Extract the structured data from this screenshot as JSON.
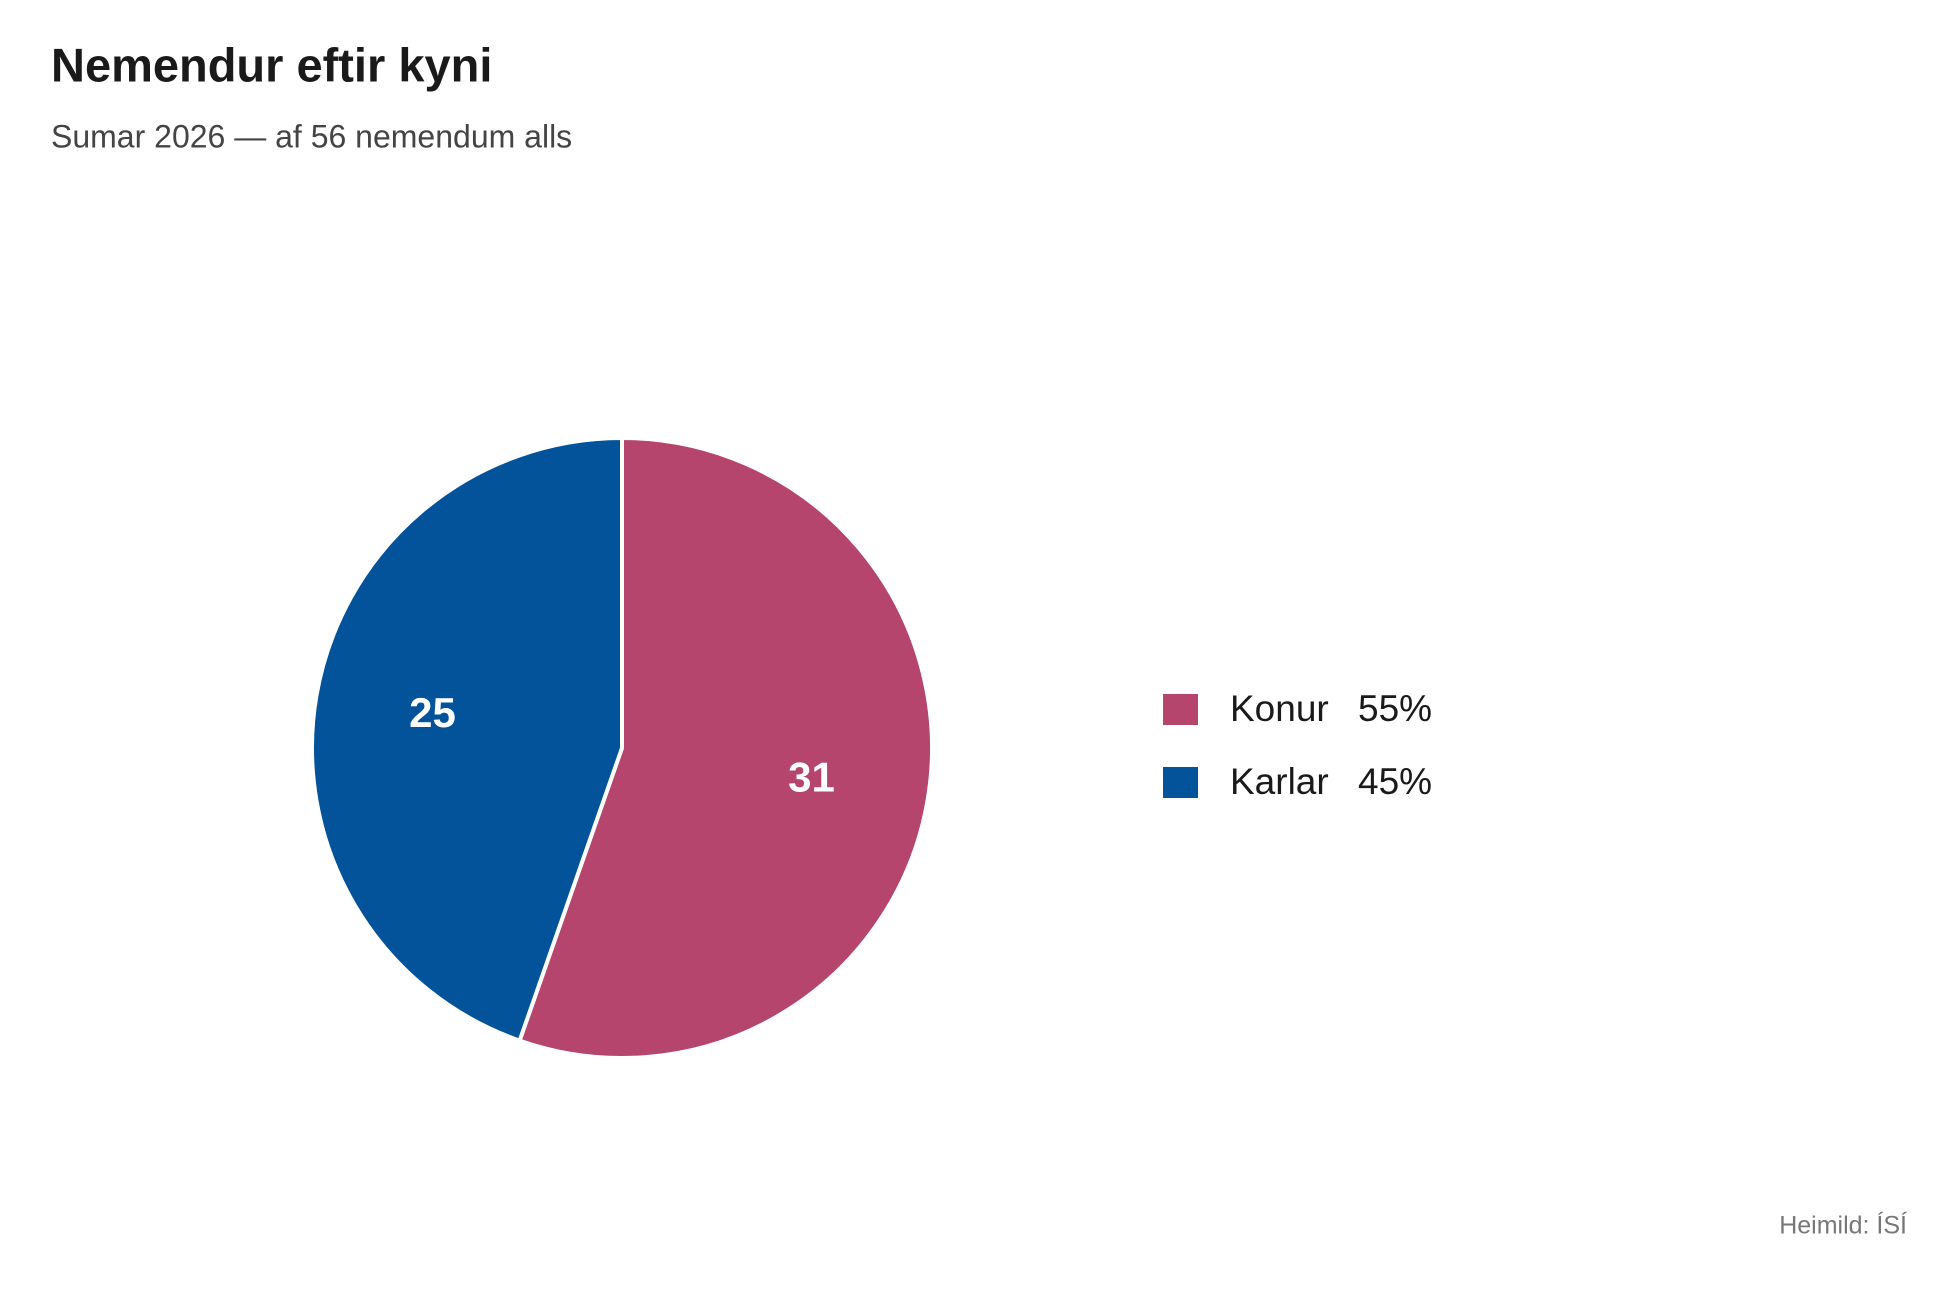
{
  "chart_data": {
    "type": "pie",
    "title": "Nemendur eftir kyni",
    "subtitle": "Sumar 2026 — af 56 nemendum alls",
    "categories": [
      "Konur",
      "Karlar"
    ],
    "values": [
      31,
      25
    ],
    "shares": [
      "55%",
      "45%"
    ],
    "colors": [
      "#b5456c",
      "#03539b"
    ],
    "source": "Heimild: ÍSÍ"
  }
}
